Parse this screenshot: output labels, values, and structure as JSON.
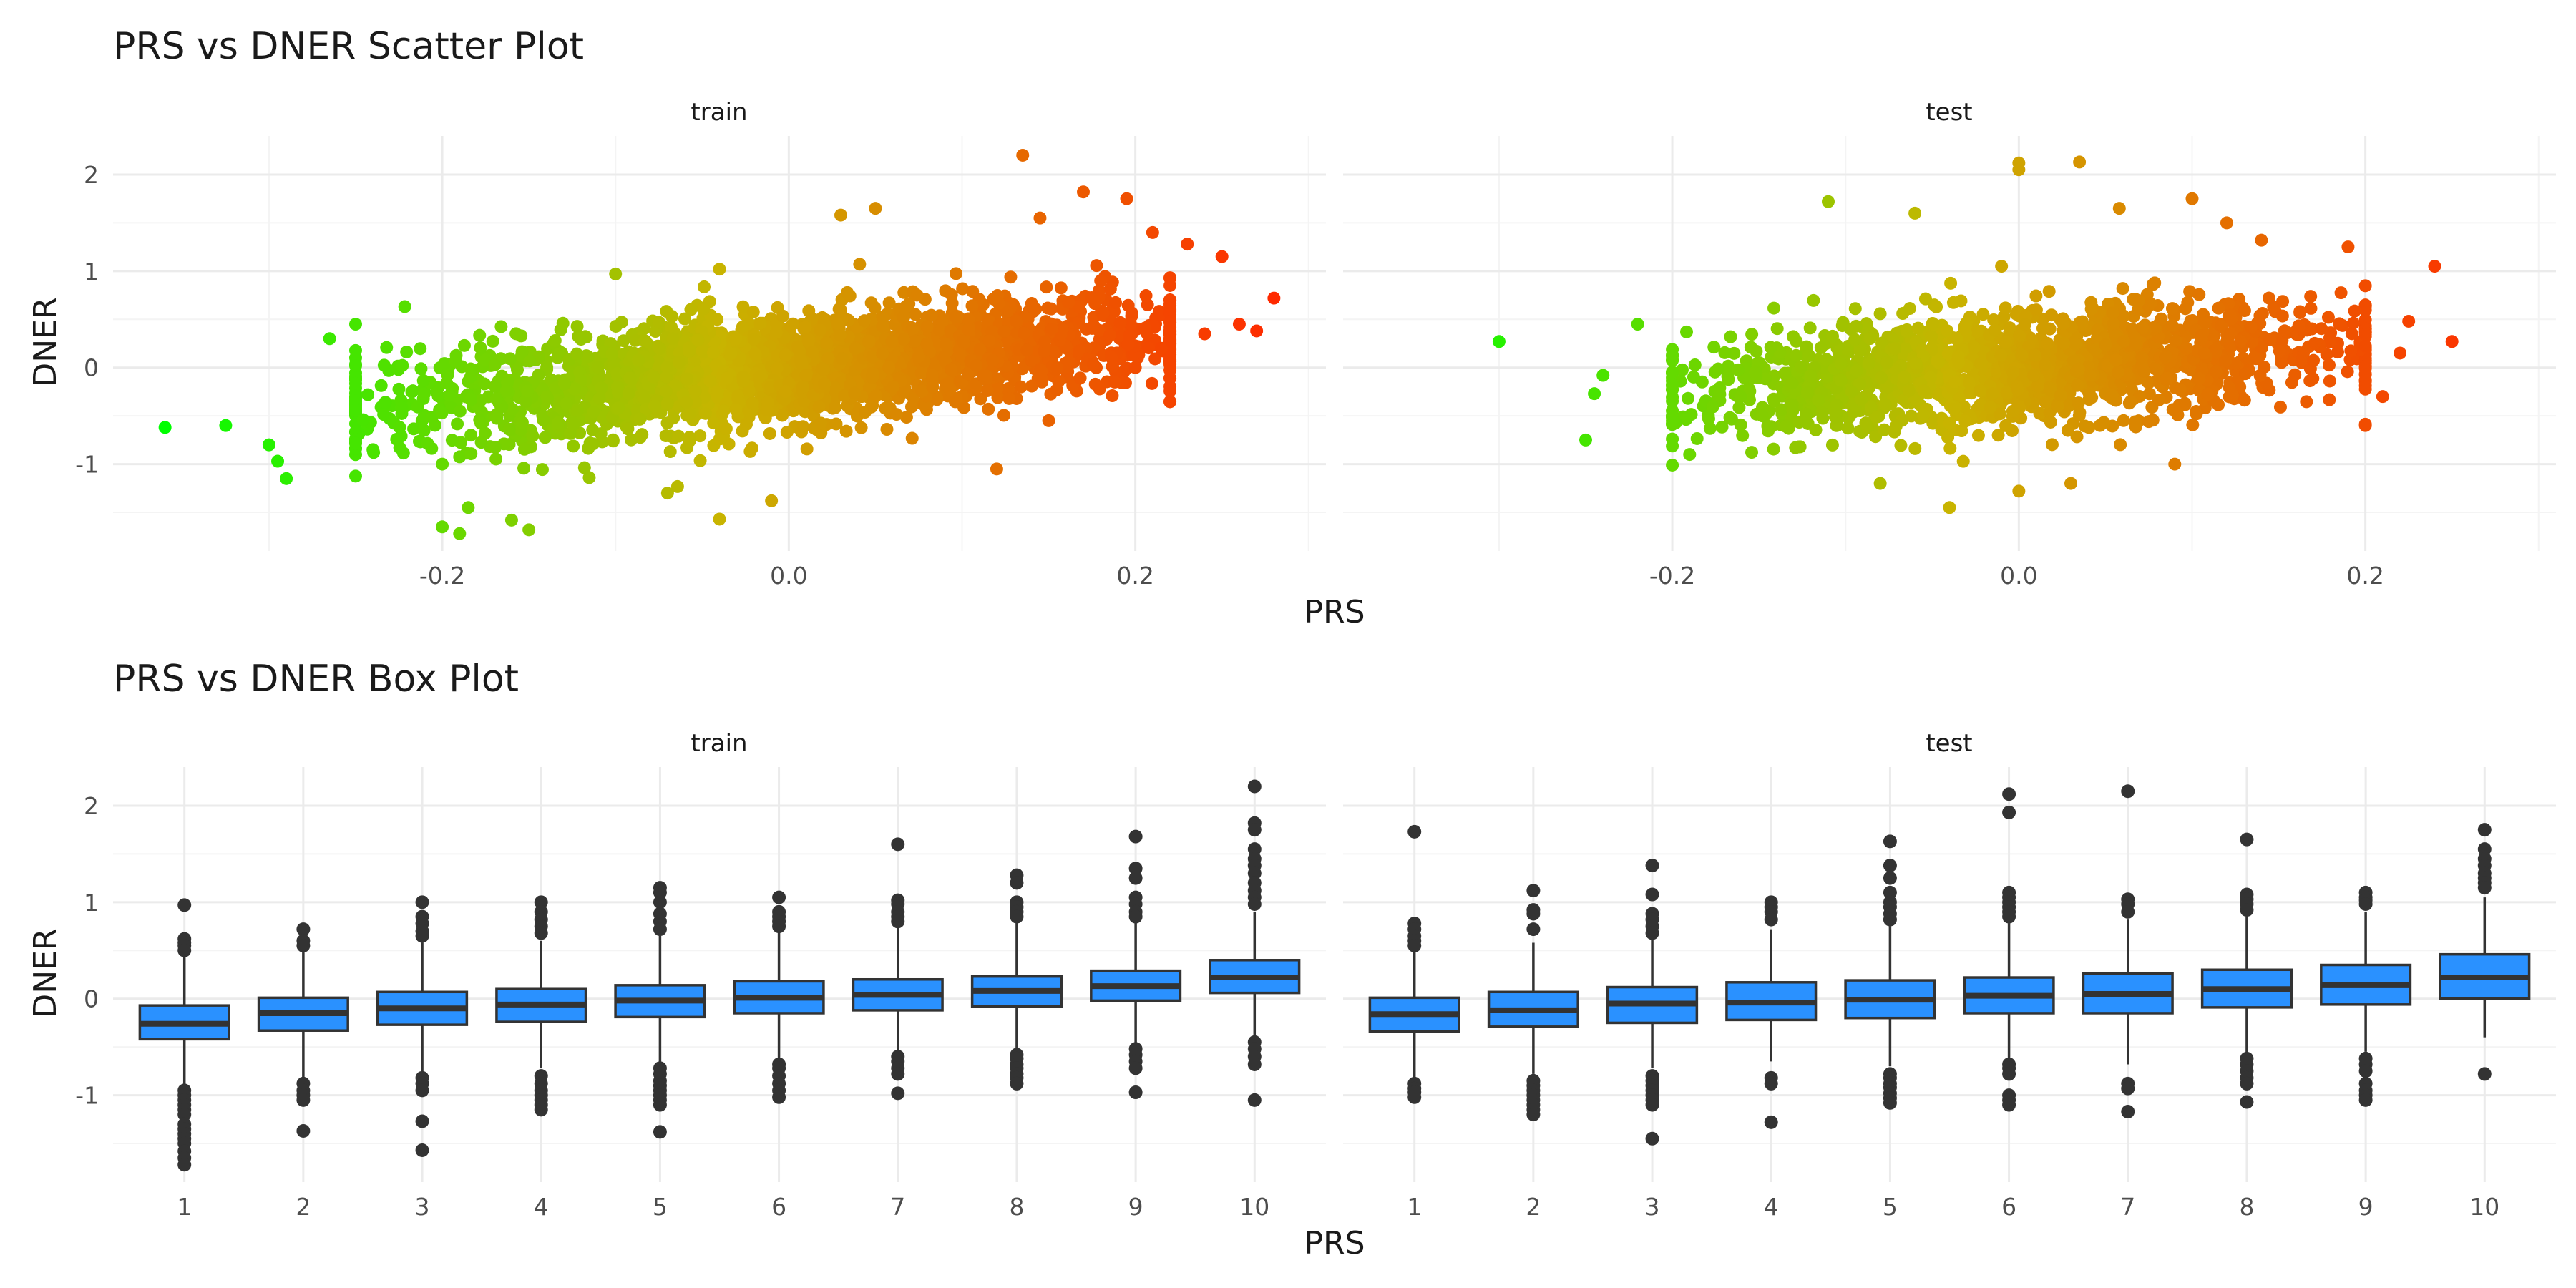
{
  "chart_data": [
    {
      "type": "scatter",
      "title": "PRS vs DNER Scatter Plot",
      "xlabel": "PRS",
      "ylabel": "DNER",
      "color_scale": {
        "low": "#00ff00",
        "mid": "#c8b400",
        "high": "#ff2a00",
        "by": "x"
      },
      "grid": true,
      "facets": [
        {
          "label": "train",
          "xlim": [
            -0.39,
            0.31
          ],
          "ylim": [
            -1.9,
            2.4
          ],
          "xticks": [
            -0.2,
            0.0,
            0.2
          ],
          "xtick_labels": [
            "-0.2",
            "0.0",
            "0.2"
          ],
          "yticks": [
            -1,
            0,
            1,
            2
          ],
          "ytick_labels": [
            "-1",
            "0",
            "1",
            "2"
          ],
          "cloud": {
            "x_range": [
              -0.25,
              0.22
            ],
            "center": [
              0.0,
              0.0
            ],
            "slope": 1.65,
            "spread": 0.28,
            "n": 2600
          },
          "points": [
            [
              -0.36,
              -0.62
            ],
            [
              -0.325,
              -0.6
            ],
            [
              -0.29,
              -1.15
            ],
            [
              -0.295,
              -0.97
            ],
            [
              -0.3,
              -0.8
            ],
            [
              -0.2,
              -1.65
            ],
            [
              -0.19,
              -1.72
            ],
            [
              -0.15,
              -1.68
            ],
            [
              -0.16,
              -1.58
            ],
            [
              -0.185,
              -1.45
            ],
            [
              -0.04,
              -1.57
            ],
            [
              -0.07,
              -1.3
            ],
            [
              -0.01,
              -1.38
            ],
            [
              0.12,
              -1.05
            ],
            [
              0.135,
              2.2
            ],
            [
              0.17,
              1.82
            ],
            [
              0.195,
              1.75
            ],
            [
              0.145,
              1.55
            ],
            [
              0.05,
              1.65
            ],
            [
              0.03,
              1.58
            ],
            [
              -0.1,
              0.97
            ],
            [
              -0.04,
              1.02
            ],
            [
              0.28,
              0.72
            ],
            [
              0.27,
              0.38
            ],
            [
              0.24,
              0.35
            ],
            [
              0.26,
              0.45
            ],
            [
              0.23,
              1.28
            ],
            [
              0.25,
              1.15
            ],
            [
              0.21,
              1.4
            ],
            [
              0.22,
              0.05
            ],
            [
              0.215,
              0.2
            ],
            [
              0.2,
              0.0
            ],
            [
              -0.25,
              0.45
            ],
            [
              -0.265,
              0.3
            ],
            [
              -0.2,
              -1.0
            ],
            [
              -0.24,
              -0.85
            ],
            [
              0.15,
              -0.55
            ],
            [
              0.18,
              0.9
            ]
          ]
        },
        {
          "label": "test",
          "xlim": [
            -0.39,
            0.31
          ],
          "ylim": [
            -1.9,
            2.4
          ],
          "xticks": [
            -0.2,
            0.0,
            0.2
          ],
          "xtick_labels": [
            "-0.2",
            "0.0",
            "0.2"
          ],
          "yticks": [
            -1,
            0,
            1,
            2
          ],
          "ytick_labels": [
            "-1",
            "0",
            "1",
            "2"
          ],
          "cloud": {
            "x_range": [
              -0.2,
              0.2
            ],
            "center": [
              0.0,
              0.0
            ],
            "slope": 1.3,
            "spread": 0.28,
            "n": 1700
          },
          "points": [
            [
              -0.3,
              0.27
            ],
            [
              -0.25,
              -0.75
            ],
            [
              -0.245,
              -0.27
            ],
            [
              -0.24,
              -0.08
            ],
            [
              -0.22,
              0.45
            ],
            [
              -0.11,
              1.72
            ],
            [
              0.0,
              2.12
            ],
            [
              0.0,
              2.05
            ],
            [
              0.035,
              2.13
            ],
            [
              0.058,
              1.65
            ],
            [
              0.1,
              1.75
            ],
            [
              0.12,
              1.5
            ],
            [
              -0.06,
              1.6
            ],
            [
              0.25,
              0.27
            ],
            [
              0.24,
              1.05
            ],
            [
              0.22,
              0.15
            ],
            [
              0.225,
              0.48
            ],
            [
              0.2,
              -0.6
            ],
            [
              0.21,
              -0.3
            ],
            [
              -0.04,
              -1.45
            ],
            [
              0.0,
              -1.28
            ],
            [
              -0.08,
              -1.2
            ],
            [
              0.03,
              -1.2
            ],
            [
              0.09,
              -1.0
            ],
            [
              -0.2,
              -0.55
            ],
            [
              -0.19,
              -0.9
            ],
            [
              0.19,
              1.25
            ],
            [
              0.14,
              1.32
            ],
            [
              -0.01,
              1.05
            ],
            [
              0.06,
              0.82
            ]
          ]
        }
      ]
    },
    {
      "type": "box",
      "title": "PRS vs DNER Box Plot",
      "xlabel": "PRS",
      "ylabel": "DNER",
      "fill": "#2a91ff",
      "grid": true,
      "categories": [
        "1",
        "2",
        "3",
        "4",
        "5",
        "6",
        "7",
        "8",
        "9",
        "10"
      ],
      "facets": [
        {
          "label": "train",
          "ylim": [
            -1.9,
            2.4
          ],
          "yticks": [
            -1,
            0,
            1,
            2
          ],
          "ytick_labels": [
            "-1",
            "0",
            "1",
            "2"
          ],
          "boxes": [
            {
              "q1": -0.42,
              "median": -0.26,
              "q3": -0.07,
              "wlo": -0.9,
              "whi": 0.45,
              "outliers": [
                0.97,
                0.62,
                0.58,
                0.55,
                0.5,
                -0.95,
                -1.0,
                -1.05,
                -1.1,
                -1.15,
                -1.2,
                -1.3,
                -1.35,
                -1.4,
                -1.45,
                -1.5,
                -1.58,
                -1.65,
                -1.72
              ]
            },
            {
              "q1": -0.33,
              "median": -0.15,
              "q3": 0.01,
              "wlo": -0.82,
              "whi": 0.5,
              "outliers": [
                0.72,
                0.6,
                0.55,
                -0.88,
                -0.95,
                -1.0,
                -1.05,
                -1.37
              ]
            },
            {
              "q1": -0.27,
              "median": -0.1,
              "q3": 0.07,
              "wlo": -0.78,
              "whi": 0.58,
              "outliers": [
                1.0,
                0.85,
                0.78,
                0.7,
                0.65,
                -0.82,
                -0.88,
                -0.95,
                -1.27,
                -1.57
              ]
            },
            {
              "q1": -0.24,
              "median": -0.06,
              "q3": 0.1,
              "wlo": -0.72,
              "whi": 0.6,
              "outliers": [
                1.0,
                0.9,
                0.82,
                0.75,
                0.68,
                -0.8,
                -0.88,
                -0.95,
                -1.0,
                -1.05,
                -1.1,
                -1.15
              ]
            },
            {
              "q1": -0.19,
              "median": -0.02,
              "q3": 0.14,
              "wlo": -0.68,
              "whi": 0.65,
              "outliers": [
                1.15,
                1.1,
                1.0,
                0.88,
                0.8,
                0.72,
                -0.72,
                -0.78,
                -0.85,
                -0.9,
                -0.95,
                -1.0,
                -1.05,
                -1.1,
                -1.38
              ]
            },
            {
              "q1": -0.15,
              "median": 0.01,
              "q3": 0.18,
              "wlo": -0.65,
              "whi": 0.7,
              "outliers": [
                1.05,
                0.9,
                0.85,
                0.8,
                0.75,
                -0.68,
                -0.72,
                -0.8,
                -0.88,
                -0.95,
                -1.02
              ]
            },
            {
              "q1": -0.12,
              "median": 0.04,
              "q3": 0.2,
              "wlo": -0.58,
              "whi": 0.75,
              "outliers": [
                1.6,
                1.02,
                0.98,
                0.9,
                0.85,
                0.8,
                -0.6,
                -0.65,
                -0.72,
                -0.78,
                -0.98
              ]
            },
            {
              "q1": -0.08,
              "median": 0.08,
              "q3": 0.23,
              "wlo": -0.55,
              "whi": 0.78,
              "outliers": [
                1.28,
                1.2,
                1.0,
                0.95,
                0.9,
                0.85,
                -0.58,
                -0.62,
                -0.68,
                -0.72,
                -0.78,
                -0.82,
                -0.88
              ]
            },
            {
              "q1": -0.02,
              "median": 0.13,
              "q3": 0.29,
              "wlo": -0.5,
              "whi": 0.8,
              "outliers": [
                1.68,
                1.35,
                1.25,
                1.05,
                0.98,
                0.9,
                0.85,
                -0.52,
                -0.58,
                -0.65,
                -0.72,
                -0.97
              ]
            },
            {
              "q1": 0.06,
              "median": 0.22,
              "q3": 0.4,
              "wlo": -0.42,
              "whi": 0.9,
              "outliers": [
                2.2,
                1.82,
                1.75,
                1.55,
                1.45,
                1.38,
                1.3,
                1.2,
                1.12,
                1.05,
                0.98,
                -0.45,
                -0.52,
                -0.6,
                -0.68,
                -1.05
              ]
            }
          ]
        },
        {
          "label": "test",
          "ylim": [
            -1.9,
            2.4
          ],
          "yticks": [
            -1,
            0,
            1,
            2
          ],
          "ytick_labels": [
            "-1",
            "0",
            "1",
            "2"
          ],
          "boxes": [
            {
              "q1": -0.34,
              "median": -0.16,
              "q3": 0.01,
              "wlo": -0.85,
              "whi": 0.5,
              "outliers": [
                1.73,
                0.78,
                0.72,
                0.65,
                0.6,
                0.55,
                -0.88,
                -0.93,
                -0.97,
                -1.02
              ]
            },
            {
              "q1": -0.29,
              "median": -0.12,
              "q3": 0.07,
              "wlo": -0.78,
              "whi": 0.58,
              "outliers": [
                1.12,
                0.92,
                0.88,
                0.72,
                -0.85,
                -0.9,
                -0.95,
                -1.0,
                -1.05,
                -1.1,
                -1.15,
                -1.2
              ]
            },
            {
              "q1": -0.25,
              "median": -0.05,
              "q3": 0.12,
              "wlo": -0.72,
              "whi": 0.62,
              "outliers": [
                1.38,
                1.08,
                0.88,
                0.82,
                0.75,
                0.68,
                -0.8,
                -0.85,
                -0.9,
                -0.95,
                -1.0,
                -1.05,
                -1.1,
                -1.45
              ]
            },
            {
              "q1": -0.22,
              "median": -0.04,
              "q3": 0.17,
              "wlo": -0.65,
              "whi": 0.72,
              "outliers": [
                1.0,
                0.95,
                0.9,
                0.82,
                -0.82,
                -0.88,
                -1.28
              ]
            },
            {
              "q1": -0.2,
              "median": -0.01,
              "q3": 0.19,
              "wlo": -0.7,
              "whi": 0.75,
              "outliers": [
                1.63,
                1.38,
                1.25,
                1.1,
                1.0,
                0.95,
                0.88,
                0.82,
                -0.78,
                -0.82,
                -0.88,
                -0.92,
                -0.98,
                -1.03,
                -1.08
              ]
            },
            {
              "q1": -0.15,
              "median": 0.03,
              "q3": 0.22,
              "wlo": -0.62,
              "whi": 0.78,
              "outliers": [
                2.12,
                1.93,
                1.1,
                1.05,
                1.0,
                0.95,
                0.9,
                0.85,
                -0.68,
                -0.72,
                -0.78,
                -1.0,
                -1.05,
                -1.1
              ]
            },
            {
              "q1": -0.15,
              "median": 0.05,
              "q3": 0.26,
              "wlo": -0.68,
              "whi": 0.82,
              "outliers": [
                2.15,
                1.03,
                0.98,
                0.9,
                -0.88,
                -0.93,
                -1.17
              ]
            },
            {
              "q1": -0.09,
              "median": 0.1,
              "q3": 0.3,
              "wlo": -0.58,
              "whi": 0.85,
              "outliers": [
                1.65,
                1.08,
                1.03,
                0.98,
                0.92,
                -0.62,
                -0.68,
                -0.75,
                -0.82,
                -0.88,
                -1.07
              ]
            },
            {
              "q1": -0.06,
              "median": 0.14,
              "q3": 0.35,
              "wlo": -0.55,
              "whi": 0.9,
              "outliers": [
                1.1,
                1.05,
                1.02,
                0.98,
                -0.62,
                -0.68,
                -0.75,
                -0.88,
                -0.95,
                -1.0,
                -1.05
              ]
            },
            {
              "q1": 0.0,
              "median": 0.22,
              "q3": 0.46,
              "wlo": -0.4,
              "whi": 1.05,
              "outliers": [
                1.75,
                1.55,
                1.45,
                1.38,
                1.3,
                1.25,
                1.2,
                1.15,
                -0.78
              ]
            }
          ]
        }
      ]
    }
  ]
}
